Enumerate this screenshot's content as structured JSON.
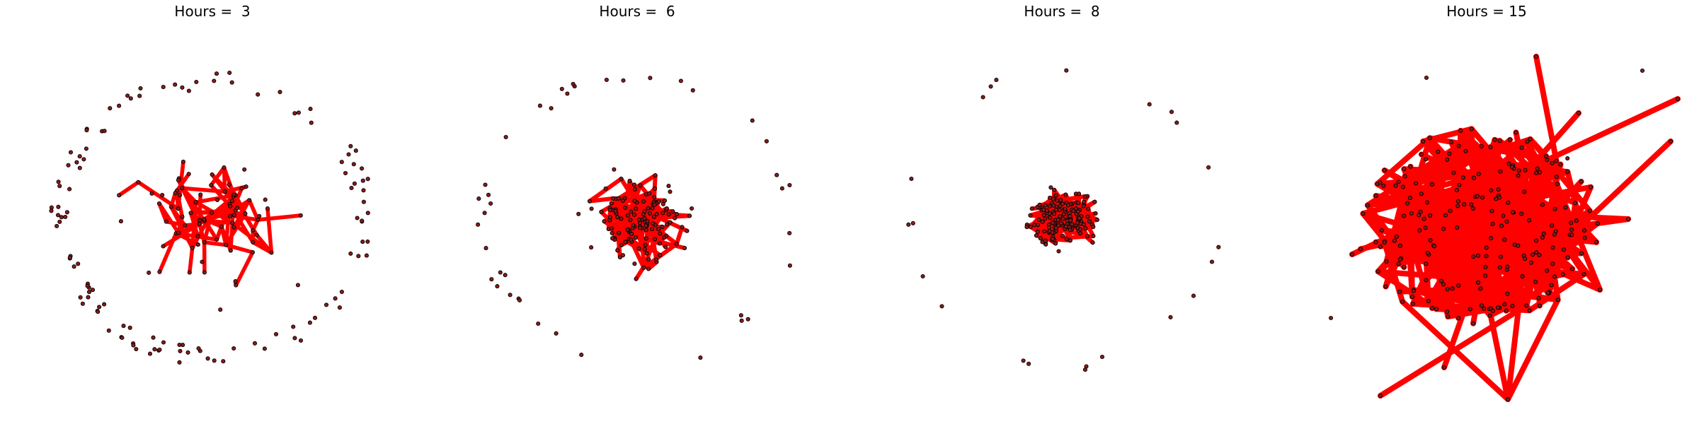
{
  "figure": {
    "panels": [
      {
        "title": "Hours =  3"
      },
      {
        "title": "Hours =  6"
      },
      {
        "title": "Hours =  8"
      },
      {
        "title": "Hours = 15"
      }
    ]
  },
  "colors": {
    "edge": "#ff0000",
    "node_fill": "#8b1a1a",
    "node_stroke": "#000000",
    "background": "#ffffff"
  }
}
